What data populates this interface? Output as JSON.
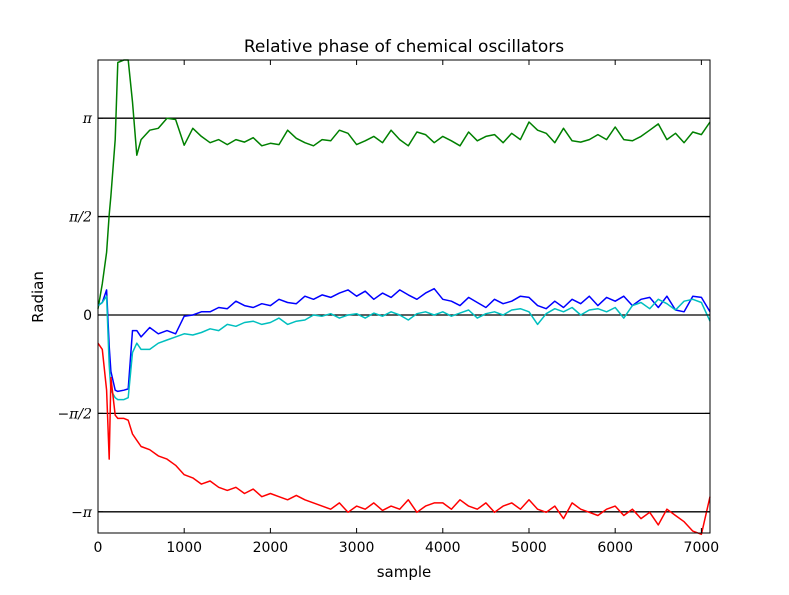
{
  "chart_data": {
    "type": "line",
    "title": "Relative phase of chemical oscillators",
    "xlabel": "sample",
    "ylabel": "Radian",
    "xlim": [
      0,
      7100
    ],
    "ylim": [
      -3.48,
      4.07
    ],
    "grid": false,
    "x_ticks": [
      0,
      1000,
      2000,
      3000,
      4000,
      5000,
      6000,
      7000
    ],
    "x_tick_labels": [
      "0",
      "1000",
      "2000",
      "3000",
      "4000",
      "5000",
      "6000",
      "7000"
    ],
    "y_ticks": [
      3.14159,
      1.5708,
      0,
      -1.5708,
      -3.14159
    ],
    "y_tick_labels": [
      "π",
      "π/2",
      "0",
      "−π/2",
      "−π"
    ],
    "hlines": [
      3.14159,
      1.5708,
      0,
      -1.5708,
      -3.14159
    ],
    "x": [
      0,
      50,
      100,
      130,
      150,
      200,
      230,
      300,
      350,
      400,
      450,
      500,
      600,
      700,
      800,
      900,
      1000,
      1100,
      1200,
      1300,
      1400,
      1500,
      1600,
      1700,
      1800,
      1900,
      2000,
      2100,
      2200,
      2300,
      2400,
      2500,
      2600,
      2700,
      2800,
      2900,
      3000,
      3100,
      3200,
      3300,
      3400,
      3500,
      3600,
      3700,
      3800,
      3900,
      4000,
      4100,
      4200,
      4300,
      4400,
      4500,
      4600,
      4700,
      4800,
      4900,
      5000,
      5100,
      5200,
      5300,
      5400,
      5500,
      5600,
      5700,
      5800,
      5900,
      6000,
      6100,
      6200,
      6300,
      6400,
      6500,
      6600,
      6700,
      6800,
      6900,
      7000,
      7100
    ],
    "series": [
      {
        "name": "green",
        "color": "#008000",
        "values": [
          0.1,
          0.5,
          1.0,
          1.6,
          1.9,
          2.8,
          4.03,
          4.07,
          4.07,
          3.4,
          2.55,
          2.8,
          2.95,
          2.98,
          3.14,
          3.12,
          2.71,
          2.98,
          2.85,
          2.75,
          2.8,
          2.72,
          2.8,
          2.76,
          2.83,
          2.7,
          2.74,
          2.72,
          2.95,
          2.82,
          2.75,
          2.7,
          2.8,
          2.78,
          2.95,
          2.9,
          2.72,
          2.78,
          2.85,
          2.75,
          2.95,
          2.8,
          2.7,
          2.92,
          2.88,
          2.75,
          2.85,
          2.78,
          2.7,
          2.92,
          2.78,
          2.85,
          2.88,
          2.75,
          2.9,
          2.8,
          3.08,
          2.95,
          2.9,
          2.75,
          2.98,
          2.78,
          2.76,
          2.8,
          2.88,
          2.8,
          3.0,
          2.8,
          2.78,
          2.85,
          2.95,
          3.05,
          2.8,
          2.9,
          2.75,
          2.92,
          2.88,
          3.08
        ]
      },
      {
        "name": "blue",
        "color": "#0000ff",
        "values": [
          0.15,
          0.2,
          0.4,
          -0.5,
          -0.9,
          -1.2,
          -1.22,
          -1.2,
          -1.18,
          -0.25,
          -0.25,
          -0.35,
          -0.2,
          -0.3,
          -0.25,
          -0.3,
          -0.02,
          0.0,
          0.05,
          0.05,
          0.12,
          0.1,
          0.22,
          0.15,
          0.12,
          0.18,
          0.15,
          0.25,
          0.2,
          0.18,
          0.3,
          0.25,
          0.32,
          0.28,
          0.35,
          0.4,
          0.3,
          0.38,
          0.25,
          0.35,
          0.28,
          0.4,
          0.32,
          0.25,
          0.35,
          0.42,
          0.25,
          0.22,
          0.15,
          0.28,
          0.2,
          0.12,
          0.25,
          0.18,
          0.22,
          0.3,
          0.28,
          0.15,
          0.1,
          0.22,
          0.12,
          0.25,
          0.18,
          0.3,
          0.15,
          0.28,
          0.22,
          0.3,
          0.15,
          0.25,
          0.28,
          0.12,
          0.3,
          0.08,
          0.05,
          0.3,
          0.28,
          0.05
        ]
      },
      {
        "name": "cyan",
        "color": "#00bfbf",
        "values": [
          0.15,
          0.2,
          0.3,
          -0.8,
          -1.2,
          -1.32,
          -1.35,
          -1.35,
          -1.32,
          -0.6,
          -0.45,
          -0.55,
          -0.55,
          -0.45,
          -0.4,
          -0.35,
          -0.3,
          -0.32,
          -0.28,
          -0.22,
          -0.25,
          -0.15,
          -0.18,
          -0.12,
          -0.1,
          -0.15,
          -0.12,
          -0.05,
          -0.15,
          -0.1,
          -0.08,
          0.0,
          -0.02,
          0.02,
          -0.05,
          0.0,
          0.02,
          -0.05,
          0.03,
          -0.02,
          0.05,
          0.0,
          -0.08,
          0.02,
          0.05,
          0.0,
          0.05,
          -0.02,
          0.03,
          0.08,
          -0.05,
          0.02,
          0.05,
          0.0,
          0.08,
          0.1,
          0.05,
          -0.15,
          0.02,
          0.1,
          0.05,
          0.12,
          0.0,
          0.08,
          0.1,
          0.05,
          0.12,
          -0.05,
          0.15,
          0.2,
          0.1,
          0.25,
          0.18,
          0.08,
          0.22,
          0.25,
          0.2,
          -0.1
        ]
      },
      {
        "name": "red",
        "color": "#ff0000",
        "values": [
          -0.45,
          -0.55,
          -1.2,
          -2.3,
          -1.0,
          -1.6,
          -1.65,
          -1.65,
          -1.68,
          -1.9,
          -2.0,
          -2.1,
          -2.15,
          -2.25,
          -2.3,
          -2.4,
          -2.55,
          -2.6,
          -2.7,
          -2.65,
          -2.75,
          -2.8,
          -2.75,
          -2.85,
          -2.78,
          -2.9,
          -2.85,
          -2.9,
          -2.95,
          -2.88,
          -2.95,
          -3.0,
          -3.05,
          -3.1,
          -3.0,
          -3.15,
          -3.05,
          -3.1,
          -3.0,
          -3.12,
          -3.05,
          -3.1,
          -2.95,
          -3.15,
          -3.05,
          -3.0,
          -3.0,
          -3.1,
          -2.95,
          -3.05,
          -3.1,
          -3.0,
          -3.15,
          -3.05,
          -3.0,
          -3.1,
          -2.95,
          -3.1,
          -3.15,
          -3.05,
          -3.25,
          -3.0,
          -3.1,
          -3.15,
          -3.2,
          -3.1,
          -3.05,
          -3.2,
          -3.1,
          -3.25,
          -3.15,
          -3.35,
          -3.1,
          -3.2,
          -3.3,
          -3.45,
          -3.5,
          -2.9
        ]
      }
    ]
  }
}
